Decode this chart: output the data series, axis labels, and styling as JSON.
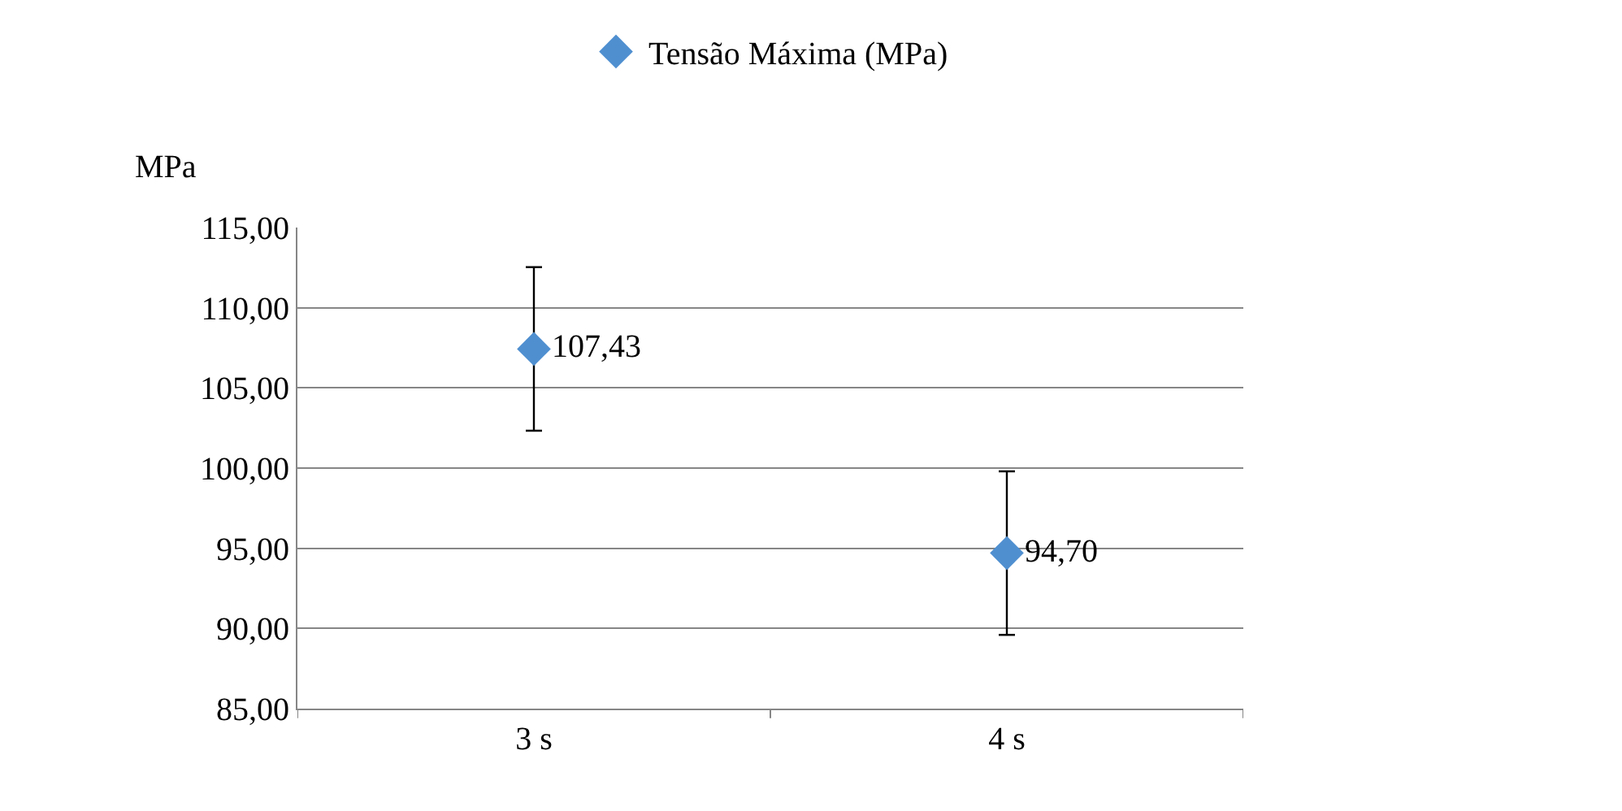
{
  "chart_data": {
    "type": "scatter",
    "ylabel": "MPa",
    "categories": [
      "3 s",
      "4 s"
    ],
    "series": [
      {
        "name": "Tensão Máxima (MPa)",
        "color": "#4f8fd0",
        "values": [
          107.43,
          94.7
        ],
        "errors": [
          5.1,
          5.1
        ],
        "value_labels": [
          "107,43",
          "94,70"
        ]
      }
    ],
    "ylim": [
      85,
      115
    ],
    "yticks": [
      {
        "value": 85,
        "label": "85,00"
      },
      {
        "value": 90,
        "label": "90,00"
      },
      {
        "value": 95,
        "label": "95,00"
      },
      {
        "value": 100,
        "label": "100,00"
      },
      {
        "value": 105,
        "label": "105,00"
      },
      {
        "value": 110,
        "label": "110,00"
      },
      {
        "value": 115,
        "label": "115,00"
      }
    ],
    "grid": "y",
    "legend": "top",
    "marker": "diamond"
  }
}
